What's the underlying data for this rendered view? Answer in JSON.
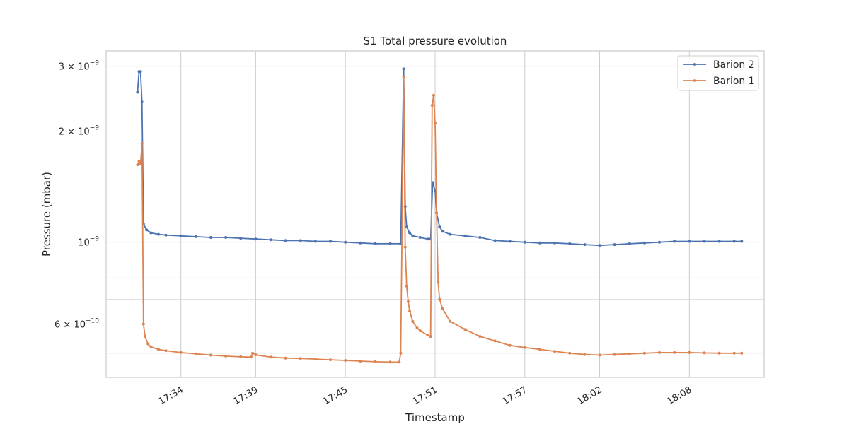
{
  "chart_data": {
    "type": "line",
    "title": "S1 Total pressure evolution",
    "xlabel": "Timestamp",
    "ylabel": "Pressure (mbar)",
    "yscale": "log",
    "ylim": [
      4.3e-10,
      3.3e-09
    ],
    "xlim": [
      "17:29:00",
      "18:13:00"
    ],
    "grid": true,
    "legend_position": "top-right",
    "x_ticks": [
      "17:34",
      "17:39",
      "17:45",
      "17:51",
      "17:57",
      "18:02",
      "18:08"
    ],
    "y_ticks": [
      {
        "mantissa": "3",
        "exponent": "−9",
        "value": 3e-09
      },
      {
        "mantissa": "2",
        "exponent": "−9",
        "value": 2e-09
      },
      {
        "mantissa": "",
        "exponent": "−9",
        "value": 1e-09
      },
      {
        "mantissa": "6",
        "exponent": "−10",
        "value": 6e-10
      }
    ],
    "y_minor_ticks": [
      4e-10,
      5e-10,
      7e-10,
      8e-10,
      9e-10
    ],
    "series": [
      {
        "name": "Barion 2",
        "color": "#4c72b0",
        "points": [
          [
            "17:31:06",
            2.55e-09
          ],
          [
            "17:31:12",
            2.9e-09
          ],
          [
            "17:31:18",
            2.9e-09
          ],
          [
            "17:31:24",
            2.4e-09
          ],
          [
            "17:31:30",
            1.12e-09
          ],
          [
            "17:31:42",
            1.08e-09
          ],
          [
            "17:32:00",
            1.06e-09
          ],
          [
            "17:32:30",
            1.05e-09
          ],
          [
            "17:33:00",
            1.045e-09
          ],
          [
            "17:34:00",
            1.04e-09
          ],
          [
            "17:35:00",
            1.035e-09
          ],
          [
            "17:36:00",
            1.03e-09
          ],
          [
            "17:37:00",
            1.03e-09
          ],
          [
            "17:38:00",
            1.025e-09
          ],
          [
            "17:39:00",
            1.02e-09
          ],
          [
            "17:40:00",
            1.015e-09
          ],
          [
            "17:41:00",
            1.01e-09
          ],
          [
            "17:42:00",
            1.01e-09
          ],
          [
            "17:43:00",
            1.005e-09
          ],
          [
            "17:44:00",
            1.005e-09
          ],
          [
            "17:45:00",
            1e-09
          ],
          [
            "17:46:00",
            9.95e-10
          ],
          [
            "17:47:00",
            9.9e-10
          ],
          [
            "17:48:00",
            9.9e-10
          ],
          [
            "17:48:42",
            9.9e-10
          ],
          [
            "17:48:54",
            2.95e-09
          ],
          [
            "17:49:00",
            1.25e-09
          ],
          [
            "17:49:06",
            1.1e-09
          ],
          [
            "17:49:18",
            1.06e-09
          ],
          [
            "17:49:30",
            1.04e-09
          ],
          [
            "17:50:00",
            1.03e-09
          ],
          [
            "17:50:30",
            1.02e-09
          ],
          [
            "17:50:42",
            1.02e-09
          ],
          [
            "17:50:50",
            1.45e-09
          ],
          [
            "17:51:00",
            1.38e-09
          ],
          [
            "17:51:06",
            1.2e-09
          ],
          [
            "17:51:18",
            1.1e-09
          ],
          [
            "17:51:30",
            1.07e-09
          ],
          [
            "17:52:00",
            1.05e-09
          ],
          [
            "17:53:00",
            1.04e-09
          ],
          [
            "17:54:00",
            1.03e-09
          ],
          [
            "17:55:00",
            1.01e-09
          ],
          [
            "17:56:00",
            1.005e-09
          ],
          [
            "17:57:00",
            1e-09
          ],
          [
            "17:58:00",
            9.95e-10
          ],
          [
            "17:59:00",
            9.95e-10
          ],
          [
            "18:00:00",
            9.9e-10
          ],
          [
            "18:01:00",
            9.85e-10
          ],
          [
            "18:02:00",
            9.8e-10
          ],
          [
            "18:03:00",
            9.85e-10
          ],
          [
            "18:04:00",
            9.9e-10
          ],
          [
            "18:05:00",
            9.95e-10
          ],
          [
            "18:06:00",
            1e-09
          ],
          [
            "18:07:00",
            1.005e-09
          ],
          [
            "18:08:00",
            1.005e-09
          ],
          [
            "18:09:00",
            1.005e-09
          ],
          [
            "18:10:00",
            1.005e-09
          ],
          [
            "18:11:00",
            1.005e-09
          ],
          [
            "18:11:30",
            1.005e-09
          ]
        ]
      },
      {
        "name": "Barion 1",
        "color": "#dd8452",
        "points": [
          [
            "17:31:06",
            1.62e-09
          ],
          [
            "17:31:12",
            1.66e-09
          ],
          [
            "17:31:18",
            1.63e-09
          ],
          [
            "17:31:24",
            1.85e-09
          ],
          [
            "17:31:30",
            6e-10
          ],
          [
            "17:31:36",
            5.55e-10
          ],
          [
            "17:31:48",
            5.3e-10
          ],
          [
            "17:32:00",
            5.2e-10
          ],
          [
            "17:32:30",
            5.12e-10
          ],
          [
            "17:33:00",
            5.08e-10
          ],
          [
            "17:34:00",
            5.02e-10
          ],
          [
            "17:35:00",
            4.98e-10
          ],
          [
            "17:36:00",
            4.94e-10
          ],
          [
            "17:37:00",
            4.91e-10
          ],
          [
            "17:38:00",
            4.89e-10
          ],
          [
            "17:38:42",
            4.88e-10
          ],
          [
            "17:38:48",
            5e-10
          ],
          [
            "17:39:00",
            4.95e-10
          ],
          [
            "17:40:00",
            4.88e-10
          ],
          [
            "17:41:00",
            4.85e-10
          ],
          [
            "17:42:00",
            4.84e-10
          ],
          [
            "17:43:00",
            4.82e-10
          ],
          [
            "17:44:00",
            4.8e-10
          ],
          [
            "17:45:00",
            4.78e-10
          ],
          [
            "17:46:00",
            4.76e-10
          ],
          [
            "17:47:00",
            4.74e-10
          ],
          [
            "17:48:00",
            4.73e-10
          ],
          [
            "17:48:36",
            4.73e-10
          ],
          [
            "17:48:42",
            5e-10
          ],
          [
            "17:48:54",
            2.8e-09
          ],
          [
            "17:49:00",
            9.7e-10
          ],
          [
            "17:49:06",
            7.6e-10
          ],
          [
            "17:49:12",
            6.9e-10
          ],
          [
            "17:49:18",
            6.5e-10
          ],
          [
            "17:49:30",
            6.1e-10
          ],
          [
            "17:49:48",
            5.85e-10
          ],
          [
            "17:50:00",
            5.75e-10
          ],
          [
            "17:50:30",
            5.6e-10
          ],
          [
            "17:50:42",
            5.55e-10
          ],
          [
            "17:50:48",
            2.35e-09
          ],
          [
            "17:50:54",
            2.5e-09
          ],
          [
            "17:51:00",
            2.1e-09
          ],
          [
            "17:51:06",
            1.2e-09
          ],
          [
            "17:51:12",
            7.8e-10
          ],
          [
            "17:51:18",
            7e-10
          ],
          [
            "17:51:30",
            6.6e-10
          ],
          [
            "17:52:00",
            6.1e-10
          ],
          [
            "17:53:00",
            5.8e-10
          ],
          [
            "17:54:00",
            5.55e-10
          ],
          [
            "17:55:00",
            5.4e-10
          ],
          [
            "17:56:00",
            5.25e-10
          ],
          [
            "17:57:00",
            5.18e-10
          ],
          [
            "17:58:00",
            5.12e-10
          ],
          [
            "17:59:00",
            5.06e-10
          ],
          [
            "18:00:00",
            5e-10
          ],
          [
            "18:01:00",
            4.96e-10
          ],
          [
            "18:02:00",
            4.94e-10
          ],
          [
            "18:03:00",
            4.96e-10
          ],
          [
            "18:04:00",
            4.98e-10
          ],
          [
            "18:05:00",
            5e-10
          ],
          [
            "18:06:00",
            5.02e-10
          ],
          [
            "18:07:00",
            5.02e-10
          ],
          [
            "18:08:00",
            5.02e-10
          ],
          [
            "18:09:00",
            5.01e-10
          ],
          [
            "18:10:00",
            5e-10
          ],
          [
            "18:11:00",
            5e-10
          ],
          [
            "18:11:30",
            5e-10
          ]
        ]
      }
    ]
  }
}
